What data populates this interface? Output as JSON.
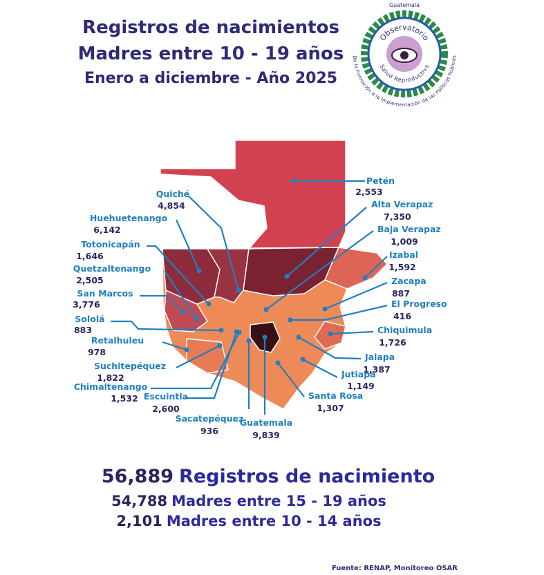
{
  "header": {
    "title": "Registros de nacimientos",
    "subtitle": "Madres entre 10 - 19 años",
    "period": "Enero a diciembre - Año 2025"
  },
  "logo": {
    "country": "Guatemala",
    "name": "Observatorio",
    "topic": "Salud Reproductiva",
    "motto": "De la Formación a la Implementación de las Políticas Públicas"
  },
  "departments": [
    {
      "name": "Petén",
      "value": "2,553"
    },
    {
      "name": "Alta Verapaz",
      "value": "7,350"
    },
    {
      "name": "Baja Verapaz",
      "value": "1,009"
    },
    {
      "name": "Izabal",
      "value": "1,592"
    },
    {
      "name": "Zacapa",
      "value": "887"
    },
    {
      "name": "El Progreso",
      "value": "416"
    },
    {
      "name": "Chiquimula",
      "value": "1,726"
    },
    {
      "name": "Jalapa",
      "value": "1,387"
    },
    {
      "name": "Jutiapa",
      "value": "1,149"
    },
    {
      "name": "Santa Rosa",
      "value": "1,307"
    },
    {
      "name": "Guatemala",
      "value": "9,839"
    },
    {
      "name": "Sacatepéquez",
      "value": "936"
    },
    {
      "name": "Escuintla",
      "value": "2,600"
    },
    {
      "name": "Chimaltenango",
      "value": "1,532"
    },
    {
      "name": "Suchitepéquez",
      "value": "1,822"
    },
    {
      "name": "Retalhuleu",
      "value": "978"
    },
    {
      "name": "Sololá",
      "value": "883"
    },
    {
      "name": "San Marcos",
      "value": "3,776"
    },
    {
      "name": "Quetzaltenango",
      "value": "2,505"
    },
    {
      "name": "Totonicapán",
      "value": "1,646"
    },
    {
      "name": "Huehuetenango",
      "value": "6,142"
    },
    {
      "name": "Quiché",
      "value": "4,854"
    }
  ],
  "summary": {
    "total": {
      "value": "56,889",
      "label": "Registros de nacimiento"
    },
    "rows": [
      {
        "value": "54,788",
        "label": "Madres entre 15 - 19 años"
      },
      {
        "value": "2,101",
        "label": "Madres entre 10 - 14 años"
      }
    ]
  },
  "source": "Fuente: RENAP, Monitoreo OSAR"
}
